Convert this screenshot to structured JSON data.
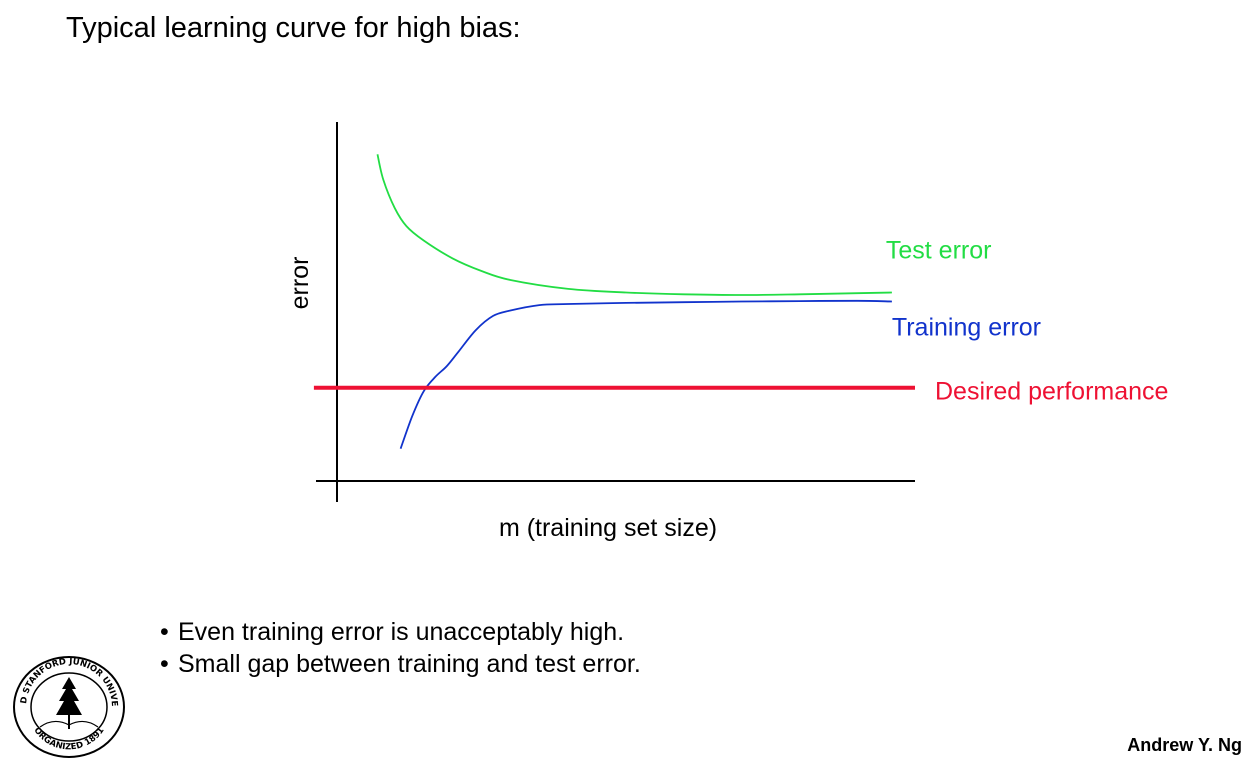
{
  "slide": {
    "title": "Typical learning curve for high bias:",
    "bullets": [
      "Even training error is unacceptably high.",
      "Small gap between training and test error."
    ],
    "author": "Andrew Y. Ng",
    "seal_text": {
      "top": "LELAND STANFORD JUNIOR UNIVERSITY",
      "bottom": "ORGANIZED 1891"
    }
  },
  "chart_data": {
    "type": "line",
    "xlabel": "m (training set size)",
    "ylabel": "error",
    "xlim": [
      0,
      100
    ],
    "ylim": [
      0,
      100
    ],
    "grid": false,
    "series": [
      {
        "name": "Test error",
        "color": "#22dd44",
        "x": [
          7,
          8,
          10,
          12,
          15,
          20,
          25,
          30,
          40,
          50,
          60,
          70,
          80,
          90,
          96
        ],
        "y": [
          91,
          84,
          76,
          71,
          67,
          62,
          58.5,
          56,
          53.5,
          52.5,
          52,
          51.8,
          52,
          52.3,
          52.5
        ]
      },
      {
        "name": "Training error",
        "color": "#1133cc",
        "x": [
          11,
          13,
          15,
          17,
          19,
          21,
          24,
          27,
          30,
          35,
          40,
          50,
          60,
          70,
          80,
          90,
          96
        ],
        "y": [
          9,
          18,
          25,
          29,
          32,
          36,
          42,
          46,
          47.5,
          49,
          49.3,
          49.6,
          49.8,
          50,
          50.1,
          50.2,
          50
        ]
      },
      {
        "name": "Desired performance",
        "color": "#ee1133",
        "x": [
          -4,
          100
        ],
        "y": [
          26,
          26
        ]
      }
    ]
  }
}
